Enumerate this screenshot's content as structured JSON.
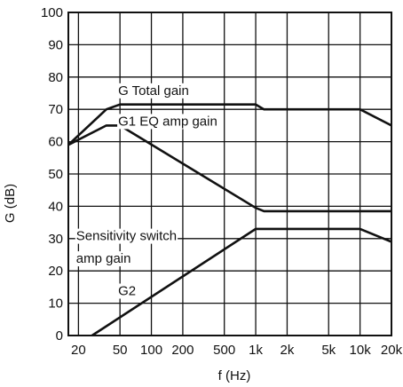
{
  "chart_data": {
    "type": "line",
    "xscale": "log",
    "xlim": [
      16,
      20000
    ],
    "ylim": [
      0,
      100
    ],
    "xlabel": "f (Hz)",
    "ylabel": "G (dB)",
    "grid": true,
    "x_ticks": [
      {
        "value": 20,
        "label": "20"
      },
      {
        "value": 50,
        "label": "50"
      },
      {
        "value": 100,
        "label": "100"
      },
      {
        "value": 200,
        "label": "200"
      },
      {
        "value": 500,
        "label": "500"
      },
      {
        "value": 1000,
        "label": "1k"
      },
      {
        "value": 2000,
        "label": "2k"
      },
      {
        "value": 5000,
        "label": "5k"
      },
      {
        "value": 10000,
        "label": "10k"
      },
      {
        "value": 20000,
        "label": "20k"
      }
    ],
    "y_ticks": [
      0,
      10,
      20,
      30,
      40,
      50,
      60,
      70,
      80,
      90,
      100
    ],
    "series": [
      {
        "key": "total",
        "points": [
          [
            16,
            59
          ],
          [
            37,
            70
          ],
          [
            50,
            71.5
          ],
          [
            1000,
            71.5
          ],
          [
            1200,
            70
          ],
          [
            10000,
            70
          ],
          [
            20000,
            65
          ]
        ]
      },
      {
        "key": "eq",
        "points": [
          [
            16,
            59
          ],
          [
            37,
            65
          ],
          [
            50,
            65
          ],
          [
            1000,
            39.5
          ],
          [
            1200,
            38.5
          ],
          [
            20000,
            38.5
          ]
        ]
      },
      {
        "key": "sens",
        "points": [
          [
            27,
            0
          ],
          [
            1000,
            33
          ],
          [
            10000,
            33
          ],
          [
            20000,
            29
          ]
        ]
      }
    ],
    "annotations": [
      {
        "key": "total",
        "parts": [
          "G Total gain"
        ],
        "x": 48,
        "y": 74.5
      },
      {
        "key": "eq",
        "parts": [
          "G1",
          " EQ amp gain"
        ],
        "x": 48,
        "y": 65
      },
      {
        "key": "sens1",
        "parts": [
          "Sensitivity switch"
        ],
        "x": 19,
        "y": 29.5
      },
      {
        "key": "sens2",
        "parts": [
          "amp gain"
        ],
        "x": 19,
        "y": 22.5
      },
      {
        "key": "g2",
        "parts": [
          "G2"
        ],
        "x": 48,
        "y": 12.5
      }
    ]
  }
}
